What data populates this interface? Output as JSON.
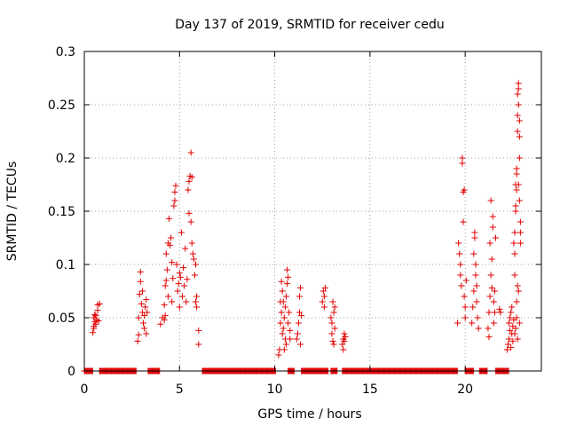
{
  "chart_data": {
    "type": "scatter",
    "title": "Day 137 of 2019, SRMTID for receiver cedu",
    "xlabel": "GPS time / hours",
    "ylabel": "SRMTID / TECUs",
    "xlim": [
      0,
      24
    ],
    "ylim": [
      0,
      0.3
    ],
    "x_ticks": [
      0,
      5,
      10,
      15,
      20
    ],
    "x_tick_labels": [
      "0",
      "5",
      "10",
      "15",
      "20"
    ],
    "y_ticks": [
      0,
      0.05,
      0.1,
      0.15,
      0.2,
      0.25,
      0.3
    ],
    "y_tick_labels": [
      "0",
      "0.05",
      "0.1",
      "0.15",
      "0.2",
      "0.25",
      "0.3"
    ],
    "grid": true,
    "marker": "plus",
    "color": "#e00000",
    "zero_segments": [
      [
        0.0,
        0.45
      ],
      [
        0.8,
        2.75
      ],
      [
        3.35,
        3.95
      ],
      [
        6.2,
        10.05
      ],
      [
        10.7,
        11.05
      ],
      [
        11.4,
        12.8
      ],
      [
        12.95,
        13.3
      ],
      [
        13.55,
        19.6
      ],
      [
        20.0,
        20.45
      ],
      [
        20.75,
        21.15
      ],
      [
        21.6,
        22.3
      ]
    ],
    "cluster_points": [
      [
        0.45,
        0.036
      ],
      [
        0.5,
        0.042
      ],
      [
        0.55,
        0.046
      ],
      [
        0.5,
        0.05
      ],
      [
        0.6,
        0.044
      ],
      [
        0.65,
        0.048
      ],
      [
        0.55,
        0.053
      ],
      [
        0.7,
        0.057
      ],
      [
        0.7,
        0.062
      ],
      [
        0.8,
        0.063
      ],
      [
        0.5,
        0.04
      ],
      [
        0.6,
        0.052
      ],
      [
        0.75,
        0.047
      ],
      [
        2.8,
        0.028
      ],
      [
        2.85,
        0.034
      ],
      [
        2.85,
        0.05
      ],
      [
        2.9,
        0.072
      ],
      [
        2.95,
        0.084
      ],
      [
        2.95,
        0.093
      ],
      [
        3.0,
        0.063
      ],
      [
        3.05,
        0.055
      ],
      [
        3.1,
        0.045
      ],
      [
        3.15,
        0.052
      ],
      [
        3.2,
        0.06
      ],
      [
        3.25,
        0.067
      ],
      [
        3.25,
        0.035
      ],
      [
        3.3,
        0.055
      ],
      [
        3.05,
        0.075
      ],
      [
        3.15,
        0.04
      ],
      [
        4.0,
        0.044
      ],
      [
        4.1,
        0.05
      ],
      [
        4.2,
        0.048
      ],
      [
        4.2,
        0.062
      ],
      [
        4.25,
        0.08
      ],
      [
        4.3,
        0.085
      ],
      [
        4.3,
        0.11
      ],
      [
        4.35,
        0.095
      ],
      [
        4.4,
        0.12
      ],
      [
        4.45,
        0.143
      ],
      [
        4.5,
        0.118
      ],
      [
        4.55,
        0.125
      ],
      [
        4.6,
        0.102
      ],
      [
        4.65,
        0.087
      ],
      [
        4.7,
        0.155
      ],
      [
        4.75,
        0.16
      ],
      [
        4.75,
        0.168
      ],
      [
        4.8,
        0.174
      ],
      [
        4.85,
        0.1
      ],
      [
        4.9,
        0.075
      ],
      [
        4.95,
        0.082
      ],
      [
        5.0,
        0.06
      ],
      [
        5.05,
        0.088
      ],
      [
        5.1,
        0.13
      ],
      [
        5.15,
        0.07
      ],
      [
        5.2,
        0.097
      ],
      [
        5.25,
        0.08
      ],
      [
        5.3,
        0.115
      ],
      [
        5.35,
        0.065
      ],
      [
        5.4,
        0.086
      ],
      [
        5.45,
        0.17
      ],
      [
        5.5,
        0.178
      ],
      [
        5.5,
        0.148
      ],
      [
        5.55,
        0.183
      ],
      [
        5.6,
        0.14
      ],
      [
        5.6,
        0.205
      ],
      [
        5.65,
        0.182
      ],
      [
        5.65,
        0.12
      ],
      [
        5.7,
        0.11
      ],
      [
        5.75,
        0.105
      ],
      [
        5.8,
        0.09
      ],
      [
        5.85,
        0.1
      ],
      [
        5.85,
        0.065
      ],
      [
        5.9,
        0.07
      ],
      [
        5.9,
        0.06
      ],
      [
        6.0,
        0.038
      ],
      [
        6.0,
        0.025
      ],
      [
        4.4,
        0.07
      ],
      [
        4.6,
        0.065
      ],
      [
        5.0,
        0.092
      ],
      [
        4.25,
        0.052
      ],
      [
        10.2,
        0.015
      ],
      [
        10.25,
        0.02
      ],
      [
        10.3,
        0.045
      ],
      [
        10.35,
        0.055
      ],
      [
        10.35,
        0.084
      ],
      [
        10.4,
        0.075
      ],
      [
        10.4,
        0.035
      ],
      [
        10.45,
        0.04
      ],
      [
        10.5,
        0.05
      ],
      [
        10.55,
        0.06
      ],
      [
        10.55,
        0.03
      ],
      [
        10.6,
        0.025
      ],
      [
        10.6,
        0.07
      ],
      [
        10.65,
        0.082
      ],
      [
        10.65,
        0.095
      ],
      [
        10.7,
        0.088
      ],
      [
        10.7,
        0.045
      ],
      [
        10.75,
        0.055
      ],
      [
        10.8,
        0.038
      ],
      [
        10.8,
        0.03
      ],
      [
        10.3,
        0.065
      ],
      [
        10.5,
        0.02
      ],
      [
        10.45,
        0.065
      ],
      [
        11.15,
        0.03
      ],
      [
        11.2,
        0.035
      ],
      [
        11.25,
        0.045
      ],
      [
        11.3,
        0.055
      ],
      [
        11.3,
        0.07
      ],
      [
        11.35,
        0.078
      ],
      [
        11.35,
        0.025
      ],
      [
        11.4,
        0.052
      ],
      [
        12.5,
        0.065
      ],
      [
        12.55,
        0.075
      ],
      [
        12.6,
        0.07
      ],
      [
        12.6,
        0.06
      ],
      [
        12.65,
        0.078
      ],
      [
        12.95,
        0.05
      ],
      [
        13.0,
        0.045
      ],
      [
        13.0,
        0.035
      ],
      [
        13.05,
        0.065
      ],
      [
        13.05,
        0.028
      ],
      [
        13.1,
        0.025
      ],
      [
        13.1,
        0.055
      ],
      [
        13.15,
        0.06
      ],
      [
        13.15,
        0.04
      ],
      [
        13.55,
        0.025
      ],
      [
        13.6,
        0.03
      ],
      [
        13.65,
        0.035
      ],
      [
        13.65,
        0.028
      ],
      [
        13.7,
        0.032
      ],
      [
        13.6,
        0.02
      ],
      [
        19.6,
        0.045
      ],
      [
        19.65,
        0.12
      ],
      [
        19.7,
        0.11
      ],
      [
        19.75,
        0.1
      ],
      [
        19.75,
        0.09
      ],
      [
        19.8,
        0.08
      ],
      [
        19.85,
        0.2
      ],
      [
        19.85,
        0.195
      ],
      [
        19.9,
        0.14
      ],
      [
        19.9,
        0.168
      ],
      [
        19.95,
        0.17
      ],
      [
        20.0,
        0.06
      ],
      [
        20.0,
        0.05
      ],
      [
        19.95,
        0.07
      ],
      [
        20.05,
        0.085
      ],
      [
        20.35,
        0.045
      ],
      [
        20.4,
        0.06
      ],
      [
        20.45,
        0.075
      ],
      [
        20.45,
        0.11
      ],
      [
        20.5,
        0.125
      ],
      [
        20.5,
        0.13
      ],
      [
        20.55,
        0.1
      ],
      [
        20.6,
        0.08
      ],
      [
        20.6,
        0.065
      ],
      [
        20.65,
        0.05
      ],
      [
        20.7,
        0.04
      ],
      [
        20.55,
        0.09
      ],
      [
        21.2,
        0.04
      ],
      [
        21.25,
        0.055
      ],
      [
        21.3,
        0.07
      ],
      [
        21.3,
        0.12
      ],
      [
        21.35,
        0.16
      ],
      [
        21.35,
        0.09
      ],
      [
        21.4,
        0.105
      ],
      [
        21.4,
        0.078
      ],
      [
        21.45,
        0.135
      ],
      [
        21.45,
        0.145
      ],
      [
        21.5,
        0.065
      ],
      [
        21.5,
        0.045
      ],
      [
        21.55,
        0.075
      ],
      [
        21.55,
        0.055
      ],
      [
        21.6,
        0.125
      ],
      [
        21.25,
        0.032
      ],
      [
        21.8,
        0.058
      ],
      [
        21.85,
        0.055
      ],
      [
        22.2,
        0.02
      ],
      [
        22.25,
        0.025
      ],
      [
        22.3,
        0.03
      ],
      [
        22.3,
        0.045
      ],
      [
        22.35,
        0.05
      ],
      [
        22.35,
        0.038
      ],
      [
        22.4,
        0.055
      ],
      [
        22.4,
        0.022
      ],
      [
        22.45,
        0.035
      ],
      [
        22.45,
        0.06
      ],
      [
        22.5,
        0.028
      ],
      [
        22.5,
        0.042
      ],
      [
        22.55,
        0.048
      ],
      [
        22.55,
        0.12
      ],
      [
        22.6,
        0.11
      ],
      [
        22.6,
        0.09
      ],
      [
        22.6,
        0.13
      ],
      [
        22.65,
        0.15
      ],
      [
        22.65,
        0.155
      ],
      [
        22.65,
        0.175
      ],
      [
        22.7,
        0.17
      ],
      [
        22.7,
        0.185
      ],
      [
        22.7,
        0.19
      ],
      [
        22.75,
        0.225
      ],
      [
        22.75,
        0.24
      ],
      [
        22.75,
        0.26
      ],
      [
        22.8,
        0.265
      ],
      [
        22.8,
        0.27
      ],
      [
        22.8,
        0.25
      ],
      [
        22.85,
        0.235
      ],
      [
        22.85,
        0.22
      ],
      [
        22.85,
        0.2
      ],
      [
        22.8,
        0.175
      ],
      [
        22.85,
        0.16
      ],
      [
        22.9,
        0.14
      ],
      [
        22.9,
        0.13
      ],
      [
        22.9,
        0.12
      ],
      [
        22.75,
        0.08
      ],
      [
        22.8,
        0.075
      ],
      [
        22.7,
        0.065
      ],
      [
        22.7,
        0.05
      ],
      [
        22.65,
        0.04
      ],
      [
        22.6,
        0.035
      ],
      [
        22.75,
        0.03
      ],
      [
        22.85,
        0.045
      ]
    ]
  }
}
